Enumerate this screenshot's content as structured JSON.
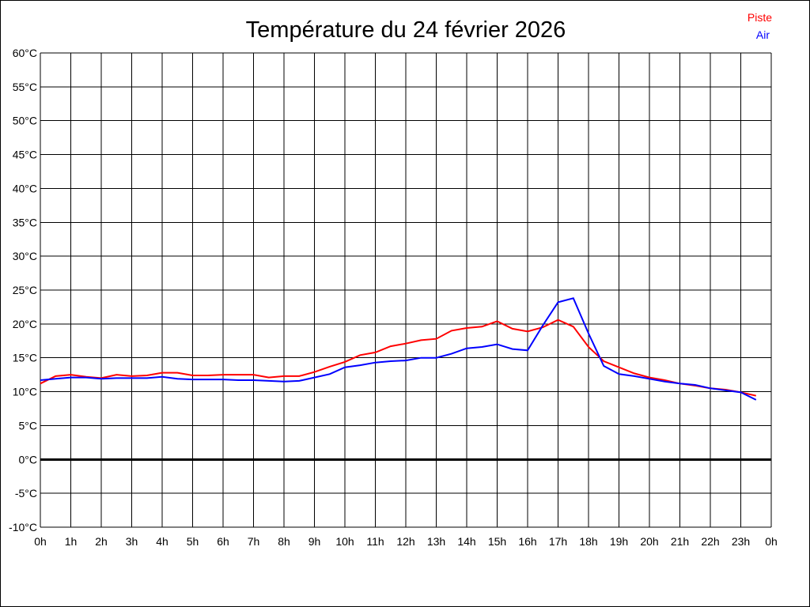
{
  "chart_data": {
    "type": "line",
    "title": "Température du 24 février 2026",
    "xlabel": "",
    "ylabel": "",
    "x_ticks": [
      "0h",
      "1h",
      "2h",
      "3h",
      "4h",
      "5h",
      "6h",
      "7h",
      "8h",
      "9h",
      "10h",
      "11h",
      "12h",
      "13h",
      "14h",
      "15h",
      "16h",
      "17h",
      "18h",
      "19h",
      "20h",
      "21h",
      "22h",
      "23h",
      "0h"
    ],
    "y_ticks": [
      "60°C",
      "55°C",
      "50°C",
      "45°C",
      "40°C",
      "35°C",
      "30°C",
      "25°C",
      "20°C",
      "15°C",
      "10°C",
      "5°C",
      "0°C",
      "-5°C",
      "-10°C"
    ],
    "xlim": [
      0,
      24
    ],
    "ylim": [
      -10,
      60
    ],
    "grid": true,
    "legend_placement": "top-right",
    "x": [
      0,
      0.5,
      1,
      1.5,
      2,
      2.5,
      3,
      3.5,
      4,
      4.5,
      5,
      5.5,
      6,
      6.5,
      7,
      7.5,
      8,
      8.5,
      9,
      9.5,
      10,
      10.5,
      11,
      11.5,
      12,
      12.5,
      13,
      13.5,
      14,
      14.5,
      15,
      15.5,
      16,
      16.5,
      17,
      17.5,
      18,
      18.5,
      19,
      19.5,
      20,
      20.5,
      21,
      21.5,
      22,
      22.5,
      23,
      23.5
    ],
    "series": [
      {
        "name": "Piste",
        "color": "#ff0000",
        "values": [
          11.2,
          12.3,
          12.5,
          12.2,
          12.0,
          12.5,
          12.3,
          12.4,
          12.8,
          12.8,
          12.4,
          12.4,
          12.5,
          12.5,
          12.5,
          12.1,
          12.3,
          12.3,
          12.9,
          13.7,
          14.4,
          15.4,
          15.8,
          16.7,
          17.1,
          17.6,
          17.8,
          19.0,
          19.4,
          19.6,
          20.4,
          19.3,
          18.9,
          19.5,
          20.6,
          19.6,
          16.6,
          14.5,
          13.6,
          12.7,
          12.1,
          11.7,
          11.2,
          10.9,
          10.5,
          10.3,
          9.9,
          9.4
        ]
      },
      {
        "name": "Air",
        "color": "#0000ff",
        "values": [
          11.7,
          11.9,
          12.1,
          12.1,
          11.9,
          12.0,
          12.0,
          12.0,
          12.2,
          11.9,
          11.8,
          11.8,
          11.8,
          11.7,
          11.7,
          11.6,
          11.5,
          11.6,
          12.1,
          12.6,
          13.6,
          13.9,
          14.3,
          14.5,
          14.6,
          15.0,
          15.0,
          15.6,
          16.4,
          16.6,
          17.0,
          16.3,
          16.1,
          19.8,
          23.2,
          23.8,
          18.6,
          13.8,
          12.6,
          12.3,
          11.9,
          11.5,
          11.2,
          11.0,
          10.5,
          10.2,
          9.9,
          8.8
        ]
      }
    ]
  }
}
